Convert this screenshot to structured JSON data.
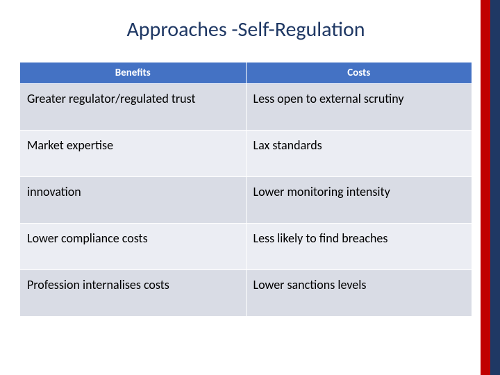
{
  "colors": {
    "navy": "#1f3864",
    "red": "#c00000",
    "header_bg": "#4472c4",
    "row_alt1": "#d9dce5",
    "row_alt2": "#ebedf3",
    "title_color": "#1f3864",
    "text_color": "#000000"
  },
  "title": {
    "part1": "Approaches ",
    "part2": "-Self-Regulation"
  },
  "table": {
    "type": "table",
    "columns": [
      "Benefits",
      "Costs"
    ],
    "header_bg": "#4472c4",
    "header_text_color": "#ffffff",
    "row_colors": [
      "#d9dce5",
      "#ebedf3",
      "#d9dce5",
      "#ebedf3",
      "#d9dce5"
    ],
    "cell_fontsize": 18,
    "header_fontsize": 15,
    "rows": [
      [
        "Greater regulator/regulated trust",
        "Less open to external scrutiny"
      ],
      [
        "Market expertise",
        "Lax standards"
      ],
      [
        "innovation",
        "Lower monitoring intensity"
      ],
      [
        "Lower compliance costs",
        "Less likely to find breaches"
      ],
      [
        "Profession internalises costs",
        "Lower sanctions levels"
      ]
    ]
  }
}
